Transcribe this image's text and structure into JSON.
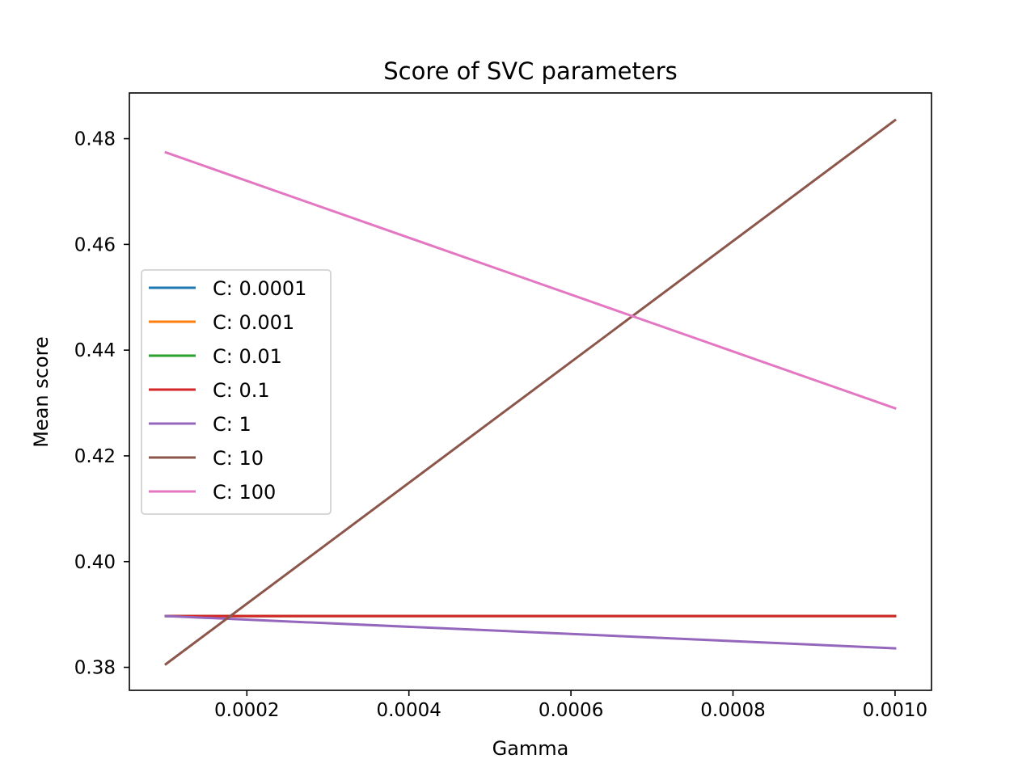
{
  "chart_data": {
    "type": "line",
    "title": "Score of SVC parameters",
    "xlabel": "Gamma",
    "ylabel": "Mean score",
    "x": [
      0.0001,
      0.001
    ],
    "xlim": [
      5.5e-05,
      0.001045
    ],
    "ylim": [
      0.37565,
      0.48865
    ],
    "xticks": [
      0.0002,
      0.0004,
      0.0006,
      0.0008,
      0.001
    ],
    "xtick_labels": [
      "0.0002",
      "0.0004",
      "0.0006",
      "0.0008",
      "0.0010"
    ],
    "yticks": [
      0.38,
      0.4,
      0.42,
      0.44,
      0.46,
      0.48
    ],
    "ytick_labels": [
      "0.38",
      "0.40",
      "0.42",
      "0.44",
      "0.46",
      "0.48"
    ],
    "grid": false,
    "legend_position": "center-left",
    "series": [
      {
        "name": "C: 0.0001",
        "color": "#1f77b4",
        "values": [
          0.3897,
          0.3897
        ]
      },
      {
        "name": "C: 0.001",
        "color": "#ff7f0e",
        "values": [
          0.3897,
          0.3897
        ]
      },
      {
        "name": "C: 0.01",
        "color": "#2ca02c",
        "values": [
          0.3897,
          0.3897
        ]
      },
      {
        "name": "C: 0.1",
        "color": "#d62728",
        "values": [
          0.3897,
          0.3897
        ]
      },
      {
        "name": "C: 1",
        "color": "#9467bd",
        "values": [
          0.3897,
          0.3836
        ]
      },
      {
        "name": "C: 10",
        "color": "#8c564b",
        "values": [
          0.3806,
          0.4835
        ]
      },
      {
        "name": "C: 100",
        "color": "#e377c2",
        "values": [
          0.4774,
          0.429
        ]
      }
    ]
  }
}
